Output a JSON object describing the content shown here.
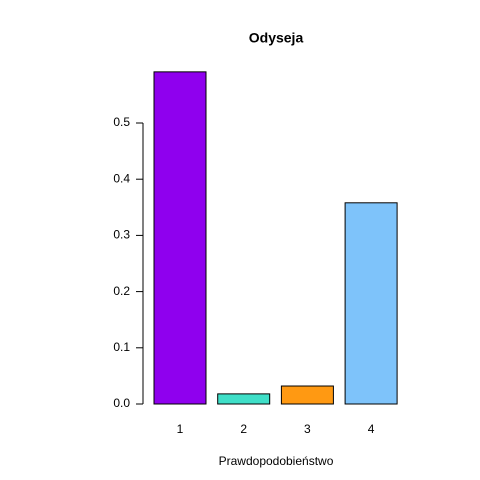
{
  "chart_data": {
    "type": "bar",
    "title": "Odyseja",
    "x_label": "Prawdopodobieństwo",
    "categories": [
      "1",
      "2",
      "3",
      "4"
    ],
    "values": [
      0.591,
      0.018,
      0.032,
      0.358
    ],
    "colors": [
      "#8f00ee",
      "#3fdfc8",
      "#ff9912",
      "#7ec3fa"
    ],
    "ylim": [
      0,
      0.6
    ],
    "yticks": [
      {
        "value": 0,
        "label": "0.0"
      },
      0.1,
      0.2,
      0.3,
      0.4,
      0.5
    ]
  }
}
